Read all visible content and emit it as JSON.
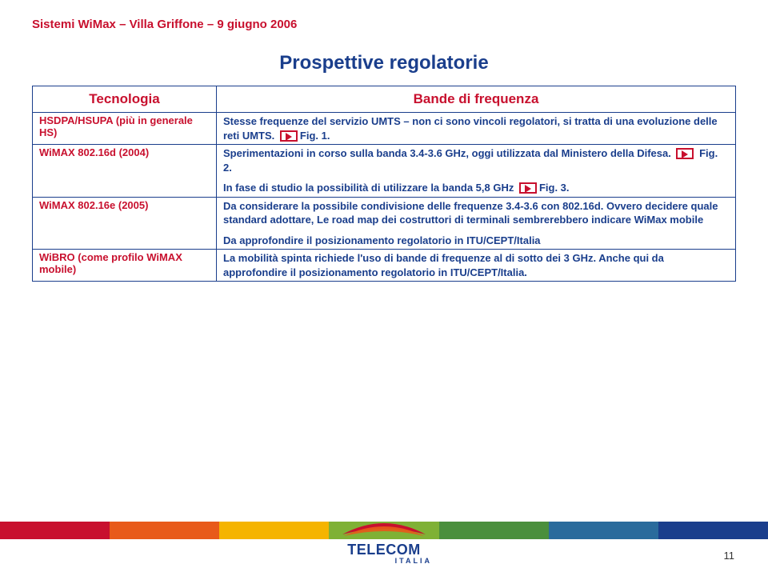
{
  "header": "Sistemi WiMax – Villa Griffone – 9 giugno 2006",
  "title": "Prospettive regolatorie",
  "table": {
    "col1_header": "Tecnologia",
    "col2_header": "Bande di frequenza",
    "rows": [
      {
        "tech_html": "HSDPA/HSUPA (più in generale HS)",
        "body": [
          {
            "type": "text",
            "value": "Stesse frequenze del servizio UMTS – non ci sono vincoli regolatori, si tratta di una evoluzione delle reti UMTS.  "
          },
          {
            "type": "icon"
          },
          {
            "type": "text",
            "value": "Fig. 1."
          }
        ]
      },
      {
        "tech_html": "WiMAX 802.16d  (2004)",
        "body": [
          {
            "type": "text",
            "value": "Sperimentazioni in corso sulla banda 3.4-3.6 GHz, oggi utilizzata dal Ministero della Difesa.  "
          },
          {
            "type": "icon"
          },
          {
            "type": "text",
            "value": " Fig. 2."
          }
        ],
        "body2": [
          {
            "type": "text",
            "value": "In fase di studio la possibilità di utilizzare la banda 5,8 GHz   "
          },
          {
            "type": "icon"
          },
          {
            "type": "text",
            "value": "Fig. 3."
          }
        ]
      },
      {
        "tech_html": "WiMAX 802.16e  (2005)",
        "body": [
          {
            "type": "text",
            "value": "Da considerare la possibile condivisione delle frequenze 3.4-3.6 con 802.16d. Ovvero decidere quale standard adottare, Le road map dei costruttori di terminali sembrerebbero indicare  WiMax mobile"
          }
        ],
        "body2": [
          {
            "type": "text",
            "value": "Da approfondire il posizionamento regolatorio in ITU/CEPT/Italia"
          }
        ]
      },
      {
        "tech_html": "WiBRO (come profilo WiMAX mobile)",
        "body": [
          {
            "type": "text",
            "value": "La mobilità spinta richiede l'uso di bande di frequenze al di sotto dei 3 GHz.  Anche qui da approfondire il posizionamento regolatorio in ITU/CEPT/Italia."
          }
        ]
      }
    ]
  },
  "footer": {
    "stripe_colors": [
      "#c8102e",
      "#e85a1a",
      "#f5b400",
      "#7fb135",
      "#4a8f3c",
      "#2a6b9c",
      "#1a3e8c"
    ],
    "logo_main": "TELECOM",
    "logo_sub": "ITALIA"
  },
  "page_number": "11"
}
